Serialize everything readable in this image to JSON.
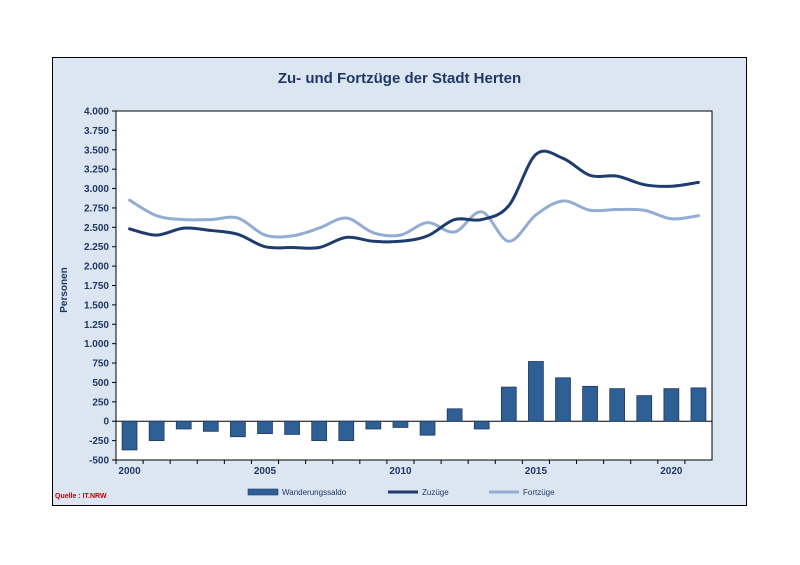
{
  "source_label": "Quelle : IT.NRW",
  "colors": {
    "bar": "#2e5f95",
    "zuzuege": "#1f3c6e",
    "fortzuege": "#93acd3",
    "text": "#1f3864",
    "panel": "#dce6f2"
  },
  "chart_data": {
    "type": "bar+line",
    "title": "Zu- und Fortzüge der Stadt Herten",
    "ylabel": "Personen",
    "ylim": [
      -500,
      4000
    ],
    "yticks": [
      4000,
      3750,
      3500,
      3250,
      3000,
      2750,
      2500,
      2250,
      2000,
      1750,
      1500,
      1250,
      1000,
      750,
      500,
      250,
      0,
      -250,
      -500
    ],
    "ytick_labels": [
      "4.000",
      "3.750",
      "3.500",
      "3.250",
      "3.000",
      "2.750",
      "2.500",
      "2.250",
      "2.000",
      "1.750",
      "1.500",
      "1.250",
      "1.000",
      "750",
      "500",
      "250",
      "0",
      "-250",
      "-500"
    ],
    "xlim": [
      2000,
      2021
    ],
    "xticks": [
      2000,
      2005,
      2010,
      2015,
      2020
    ],
    "xtick_labels": [
      "2000",
      "2005",
      "2010",
      "2015",
      "2020"
    ],
    "x": [
      2000,
      2001,
      2002,
      2003,
      2004,
      2005,
      2006,
      2007,
      2008,
      2009,
      2010,
      2011,
      2012,
      2013,
      2014,
      2015,
      2016,
      2017,
      2018,
      2019,
      2020,
      2021
    ],
    "series": [
      {
        "name": "Wanderungssaldo",
        "type": "bar",
        "values": [
          -370,
          -250,
          -100,
          -130,
          -200,
          -160,
          -170,
          -250,
          -250,
          -100,
          -80,
          -180,
          160,
          -100,
          440,
          770,
          560,
          450,
          420,
          330,
          420,
          430
        ]
      },
      {
        "name": "Zuzüge",
        "type": "line",
        "values": [
          2480,
          2400,
          2490,
          2460,
          2410,
          2250,
          2240,
          2240,
          2370,
          2320,
          2320,
          2390,
          2600,
          2600,
          2780,
          3440,
          3390,
          3170,
          3160,
          3050,
          3030,
          3080
        ]
      },
      {
        "name": "Fortzüge",
        "type": "line",
        "values": [
          2850,
          2650,
          2600,
          2600,
          2620,
          2400,
          2390,
          2490,
          2620,
          2430,
          2400,
          2560,
          2440,
          2700,
          2320,
          2660,
          2840,
          2720,
          2730,
          2720,
          2610,
          2650
        ]
      }
    ],
    "legend": {
      "position": "bottom"
    },
    "grid": false
  }
}
